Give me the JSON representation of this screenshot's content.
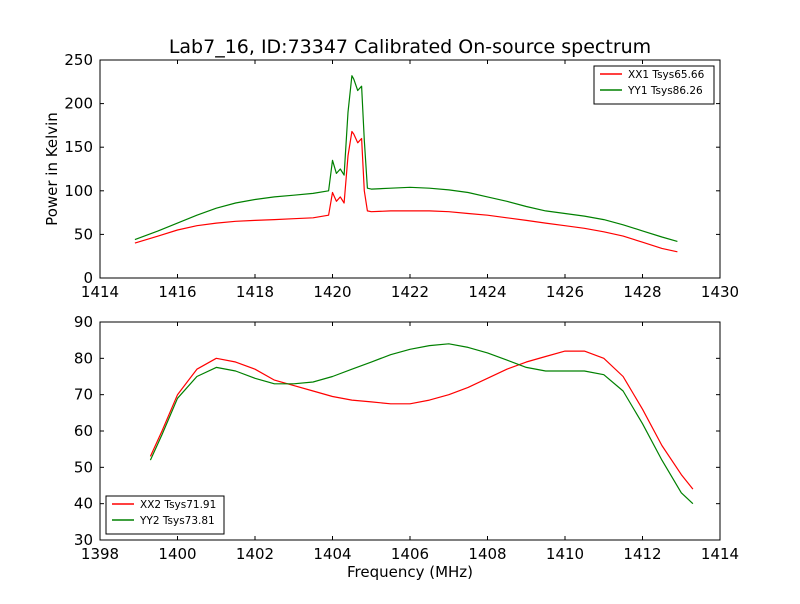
{
  "figure": {
    "title": "Lab7_16, ID:73347 Calibrated On-source spectrum"
  },
  "chart_data": [
    {
      "type": "line",
      "ylabel": "Power in Kelvin",
      "xlabel": "",
      "xlim": [
        1414,
        1430
      ],
      "ylim": [
        0,
        250
      ],
      "xticks": [
        1414,
        1416,
        1418,
        1420,
        1422,
        1424,
        1426,
        1428,
        1430
      ],
      "yticks": [
        0,
        50,
        100,
        150,
        200,
        250
      ],
      "legend_position": "top-right",
      "series": [
        {
          "name": "XX1 Tsys65.66",
          "color": "#ff0000",
          "x": [
            1414.9,
            1415.5,
            1416.0,
            1416.5,
            1417.0,
            1417.5,
            1418.0,
            1418.5,
            1419.0,
            1419.5,
            1419.9,
            1420.0,
            1420.1,
            1420.2,
            1420.3,
            1420.4,
            1420.5,
            1420.55,
            1420.65,
            1420.75,
            1420.82,
            1420.9,
            1421.0,
            1421.5,
            1422.0,
            1422.5,
            1423.0,
            1423.5,
            1424.0,
            1424.5,
            1425.0,
            1425.5,
            1426.0,
            1426.5,
            1427.0,
            1427.5,
            1428.0,
            1428.5,
            1428.9
          ],
          "values": [
            40,
            48,
            55,
            60,
            63,
            65,
            66,
            67,
            68,
            69,
            72,
            98,
            88,
            93,
            86,
            140,
            168,
            165,
            155,
            160,
            100,
            77,
            76,
            77,
            77,
            77,
            76,
            74,
            72,
            69,
            66,
            63,
            60,
            57,
            53,
            48,
            41,
            34,
            30
          ]
        },
        {
          "name": "YY1 Tsys86.26",
          "color": "#008000",
          "x": [
            1414.9,
            1415.5,
            1416.0,
            1416.5,
            1417.0,
            1417.5,
            1418.0,
            1418.5,
            1419.0,
            1419.5,
            1419.9,
            1420.0,
            1420.1,
            1420.2,
            1420.3,
            1420.4,
            1420.5,
            1420.55,
            1420.65,
            1420.75,
            1420.82,
            1420.9,
            1421.0,
            1421.5,
            1422.0,
            1422.5,
            1423.0,
            1423.5,
            1424.0,
            1424.5,
            1425.0,
            1425.5,
            1426.0,
            1426.5,
            1427.0,
            1427.5,
            1428.0,
            1428.5,
            1428.9
          ],
          "values": [
            44,
            54,
            63,
            72,
            80,
            86,
            90,
            93,
            95,
            97,
            100,
            135,
            120,
            125,
            118,
            190,
            232,
            228,
            215,
            220,
            158,
            103,
            102,
            103,
            104,
            103,
            101,
            98,
            93,
            88,
            82,
            77,
            74,
            71,
            67,
            61,
            54,
            47,
            42
          ]
        }
      ]
    },
    {
      "type": "line",
      "ylabel": "",
      "xlabel": "Frequency (MHz)",
      "xlim": [
        1398,
        1414
      ],
      "ylim": [
        30,
        90
      ],
      "xticks": [
        1398,
        1400,
        1402,
        1404,
        1406,
        1408,
        1410,
        1412,
        1414
      ],
      "yticks": [
        30,
        40,
        50,
        60,
        70,
        80,
        90
      ],
      "legend_position": "bottom-left",
      "series": [
        {
          "name": "XX2 Tsys71.91",
          "color": "#ff0000",
          "x": [
            1399.3,
            1399.6,
            1400.0,
            1400.5,
            1401.0,
            1401.5,
            1402.0,
            1402.5,
            1403.0,
            1403.5,
            1404.0,
            1404.5,
            1405.0,
            1405.5,
            1406.0,
            1406.5,
            1407.0,
            1407.5,
            1408.0,
            1408.5,
            1409.0,
            1409.5,
            1410.0,
            1410.5,
            1411.0,
            1411.5,
            1412.0,
            1412.5,
            1413.0,
            1413.3
          ],
          "values": [
            53,
            60,
            70,
            77,
            80,
            79,
            77,
            74,
            72.5,
            71,
            69.5,
            68.5,
            68,
            67.5,
            67.5,
            68.5,
            70,
            72,
            74.5,
            77,
            79,
            80.5,
            82,
            82,
            80,
            75,
            66,
            56,
            48,
            44
          ]
        },
        {
          "name": "YY2 Tsys73.81",
          "color": "#008000",
          "x": [
            1399.3,
            1399.6,
            1400.0,
            1400.5,
            1401.0,
            1401.5,
            1402.0,
            1402.5,
            1403.0,
            1403.5,
            1404.0,
            1404.5,
            1405.0,
            1405.5,
            1406.0,
            1406.5,
            1407.0,
            1407.5,
            1408.0,
            1408.5,
            1409.0,
            1409.5,
            1410.0,
            1410.5,
            1411.0,
            1411.5,
            1412.0,
            1412.5,
            1413.0,
            1413.3
          ],
          "values": [
            52,
            59,
            69,
            75,
            77.5,
            76.5,
            74.5,
            73,
            73,
            73.5,
            75,
            77,
            79,
            81,
            82.5,
            83.5,
            84,
            83,
            81.5,
            79.5,
            77.5,
            76.5,
            76.5,
            76.5,
            75.5,
            71,
            62,
            52,
            43,
            40
          ]
        }
      ]
    }
  ]
}
